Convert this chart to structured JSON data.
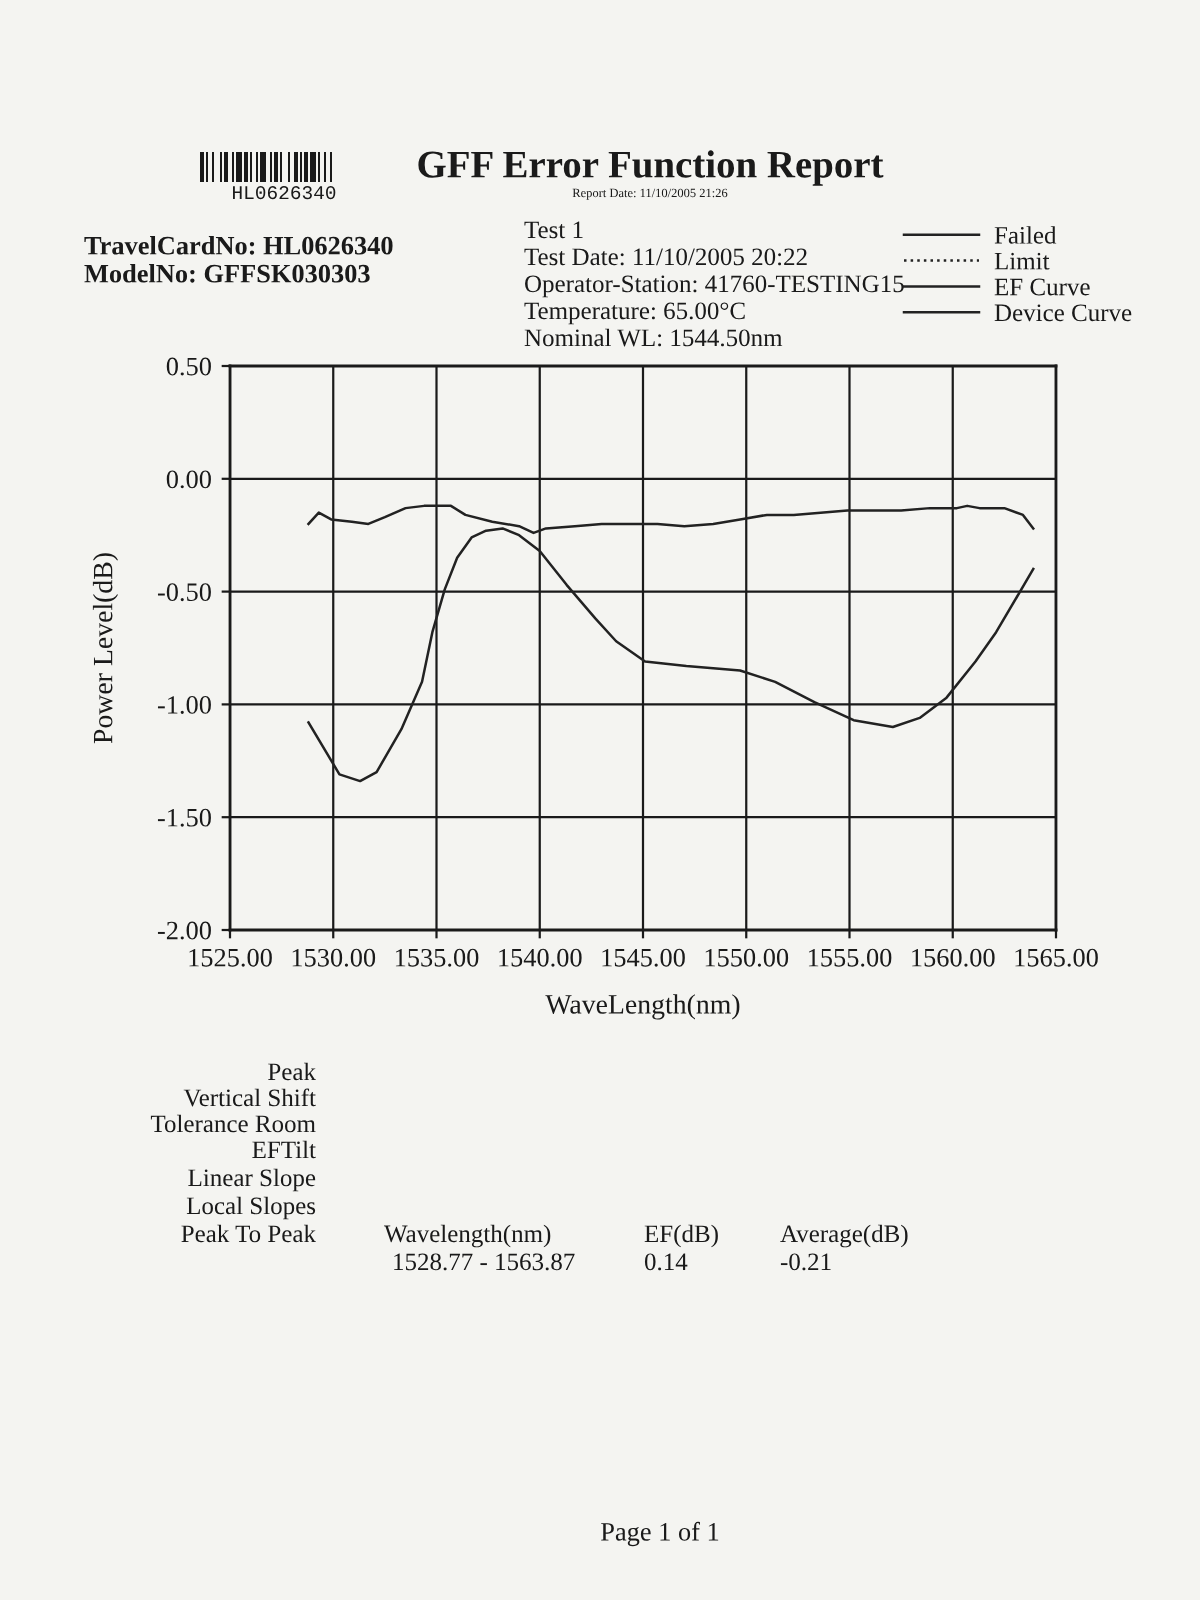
{
  "chart_data": {
    "type": "line",
    "title": "GFF Error Function Report",
    "subtitle": "Report Date: 11/10/2005 21:26",
    "xlabel": "WaveLength(nm)",
    "ylabel": "Power Level(dB)",
    "annotations": [
      "HL0626340",
      "TravelCardNo: HL0626340",
      "ModelNo: GFFSK030303",
      "Test 1",
      "Test Date: 11/10/2005 20:22",
      "Operator-Station: 41760-TESTING15",
      "Temperature: 65.00°C",
      "Nominal WL: 1544.50nm",
      "Peak",
      "Vertical Shift",
      "Tolerance Room",
      "EFTilt",
      "Linear Slope",
      "Local Slopes",
      "Peak To Peak",
      "Wavelength(nm)",
      "1528.77 - 1563.87",
      "EF(dB)",
      "0.14",
      "Average(dB)",
      "-0.21",
      "Page 1 of 1"
    ],
    "series": [
      {
        "name": "Failed",
        "color": "#222222",
        "line_style": "solid"
      },
      {
        "name": "Limit",
        "color": "#222222",
        "line_style": "dotted"
      },
      {
        "name": "EF Curve",
        "color": "#222222",
        "line_style": "solid",
        "x": [
          1528.8,
          1529.3,
          1529.9,
          1530.9,
          1531.7,
          1532.5,
          1533.5,
          1534.4,
          1535.7,
          1536.4,
          1537.7,
          1539.0,
          1539.7,
          1540.3,
          1541.7,
          1543.0,
          1544.3,
          1545.7,
          1547.0,
          1548.4,
          1549.7,
          1551.0,
          1552.3,
          1553.6,
          1554.9,
          1556.2,
          1557.5,
          1558.9,
          1560.2,
          1560.7,
          1561.3,
          1562.5,
          1563.4,
          1563.9
        ],
        "values": [
          -0.2,
          -0.15,
          -0.18,
          -0.19,
          -0.2,
          -0.17,
          -0.13,
          -0.12,
          -0.12,
          -0.16,
          -0.19,
          -0.21,
          -0.24,
          -0.22,
          -0.21,
          -0.2,
          -0.2,
          -0.2,
          -0.21,
          -0.2,
          -0.18,
          -0.16,
          -0.16,
          -0.15,
          -0.14,
          -0.14,
          -0.14,
          -0.13,
          -0.13,
          -0.12,
          -0.13,
          -0.13,
          -0.16,
          -0.22
        ]
      },
      {
        "name": "Device Curve",
        "color": "#222222",
        "line_style": "solid",
        "x": [
          1528.8,
          1530.3,
          1531.3,
          1532.1,
          1533.3,
          1534.3,
          1534.8,
          1535.4,
          1536.0,
          1536.7,
          1537.4,
          1538.2,
          1539.0,
          1540.0,
          1541.3,
          1542.7,
          1543.7,
          1545.1,
          1547.1,
          1549.7,
          1551.4,
          1553.3,
          1555.2,
          1557.1,
          1558.4,
          1559.7,
          1561.1,
          1562.1,
          1563.9
        ],
        "values": [
          -1.08,
          -1.31,
          -1.34,
          -1.3,
          -1.11,
          -0.9,
          -0.68,
          -0.49,
          -0.35,
          -0.26,
          -0.23,
          -0.22,
          -0.25,
          -0.32,
          -0.47,
          -0.62,
          -0.72,
          -0.81,
          -0.83,
          -0.85,
          -0.9,
          -0.99,
          -1.07,
          -1.1,
          -1.06,
          -0.97,
          -0.81,
          -0.68,
          -0.4
        ]
      }
    ],
    "xlim": [
      1525,
      1565
    ],
    "xticks": [
      {
        "value": 1525,
        "label": "1525.00"
      },
      {
        "value": 1530,
        "label": "1530.00"
      },
      {
        "value": 1535,
        "label": "1535.00"
      },
      {
        "value": 1540,
        "label": "1540.00"
      },
      {
        "value": 1545,
        "label": "1545.00"
      },
      {
        "value": 1550,
        "label": "1550.00"
      },
      {
        "value": 1555,
        "label": "1555.00"
      },
      {
        "value": 1560,
        "label": "1560.00"
      },
      {
        "value": 1565,
        "label": "1565.00"
      }
    ],
    "ylim": [
      -2,
      0.5
    ],
    "yticks": [
      {
        "value": -2,
        "label": "-2.00"
      },
      {
        "value": -1.5,
        "label": "-1.50"
      },
      {
        "value": -1,
        "label": "-1.00"
      },
      {
        "value": -0.5,
        "label": "-0.50"
      },
      {
        "value": 0,
        "label": "0.00"
      },
      {
        "value": 0.5,
        "label": "0.50"
      }
    ],
    "grid": true,
    "legend": "top right"
  }
}
